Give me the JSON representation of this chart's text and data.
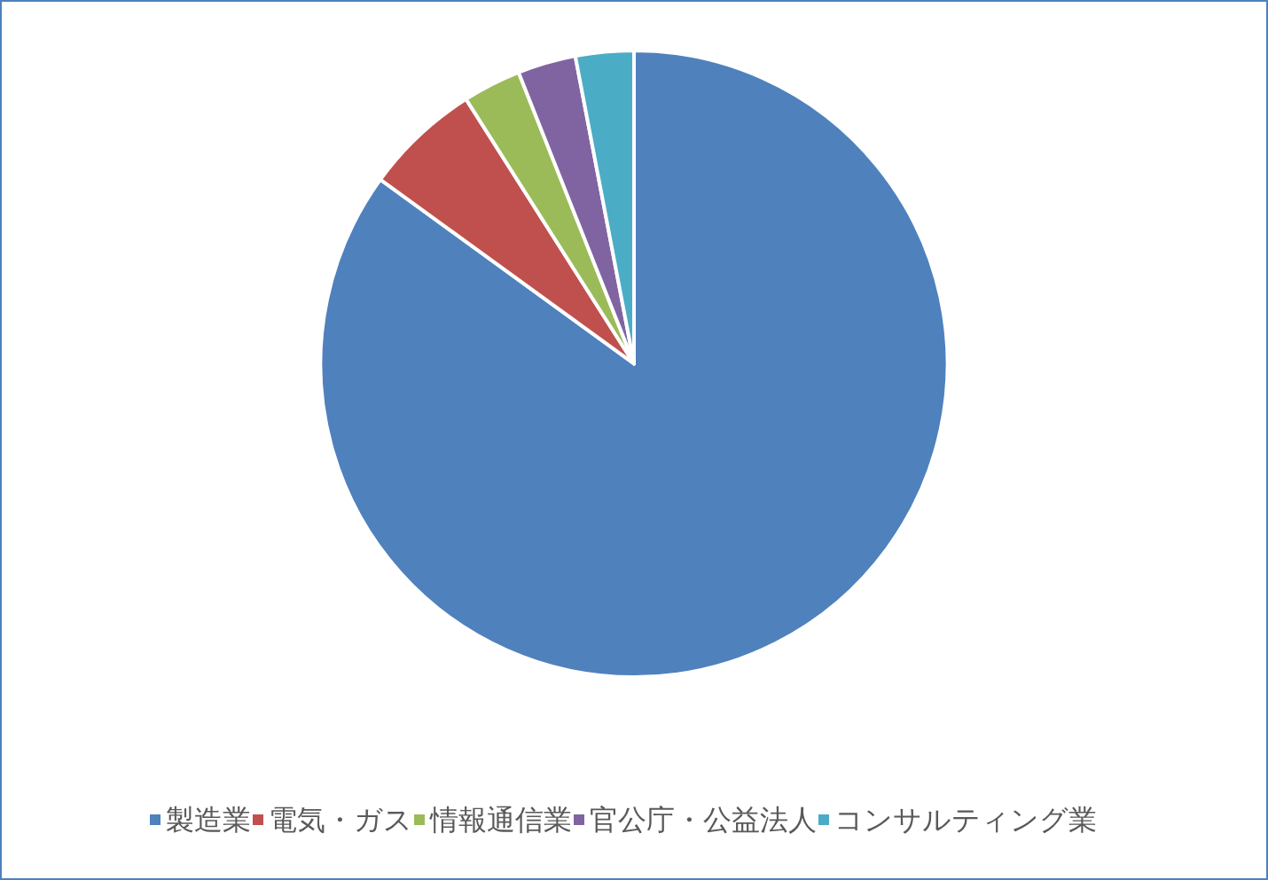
{
  "chart_data": {
    "type": "pie",
    "categories": [
      "製造業",
      "電気・ガス",
      "情報通信業",
      "官公庁・公益法人",
      "コンサルティング業"
    ],
    "values": [
      85,
      6,
      3,
      3,
      3
    ],
    "colors": [
      "#4f81bd",
      "#c0504d",
      "#9bbb59",
      "#8064a2",
      "#4bacc6"
    ],
    "legend": "bottom"
  }
}
